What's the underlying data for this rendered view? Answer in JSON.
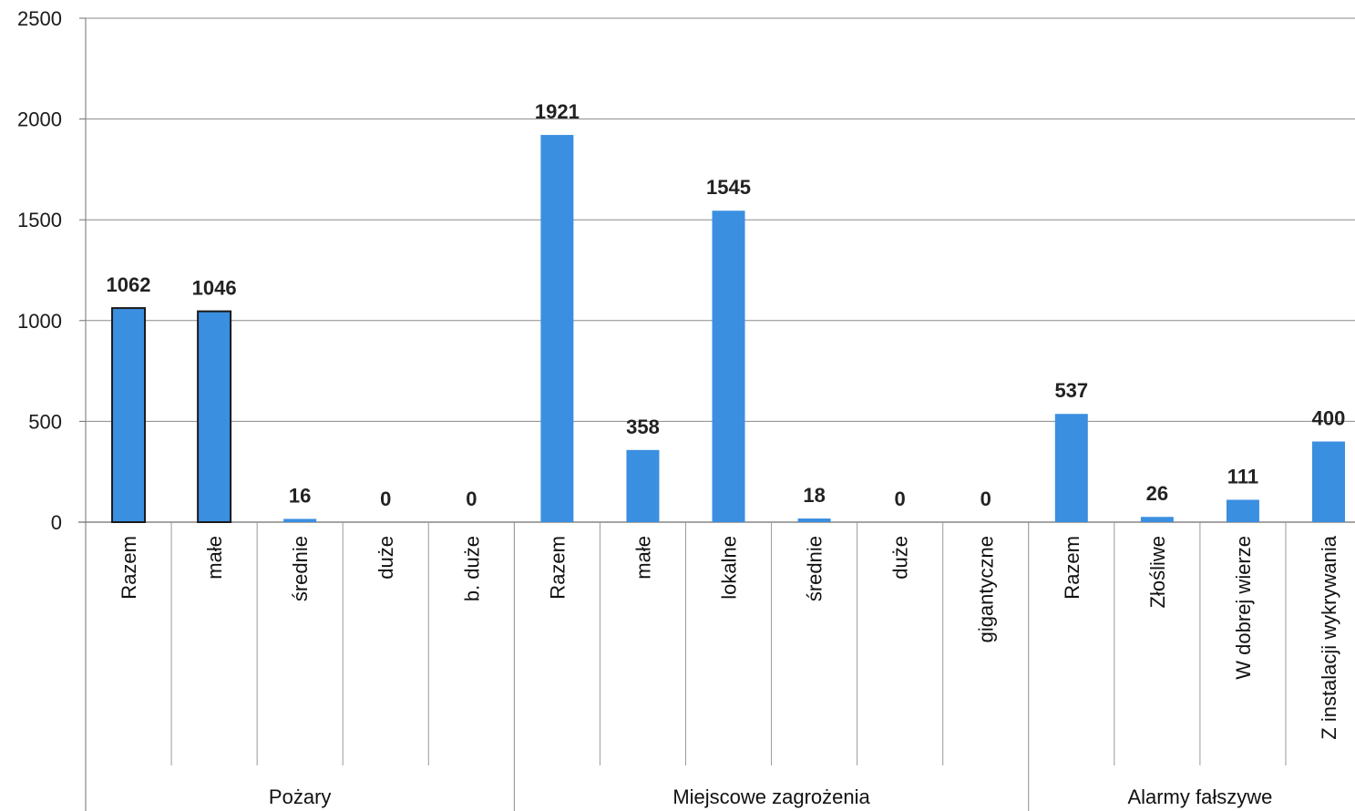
{
  "chart_data": {
    "type": "bar",
    "title": "",
    "xlabel": "",
    "ylabel": "",
    "ylim": [
      0,
      2500
    ],
    "yticks": [
      0,
      500,
      1000,
      1500,
      2000,
      2500
    ],
    "grid": true,
    "legend": "none",
    "bar_color": "#3b8fe0",
    "groups": [
      {
        "name": "Pożary",
        "categories": [
          "Razem",
          "małe",
          "średnie",
          "duże",
          "b. duże"
        ],
        "values": [
          1062,
          1046,
          16,
          0,
          0
        ]
      },
      {
        "name": "Miejscowe zagrożenia",
        "categories": [
          "Razem",
          "małe",
          "lokalne",
          "średnie",
          "duże",
          "gigantyczne"
        ],
        "values": [
          1921,
          358,
          1545,
          18,
          0,
          0
        ]
      },
      {
        "name": "Alarmy fałszywe",
        "categories": [
          "Razem",
          "Złośliwe",
          "W dobrej wierze",
          "Z instalacji wykrywania"
        ],
        "values": [
          537,
          26,
          111,
          400
        ]
      }
    ]
  }
}
